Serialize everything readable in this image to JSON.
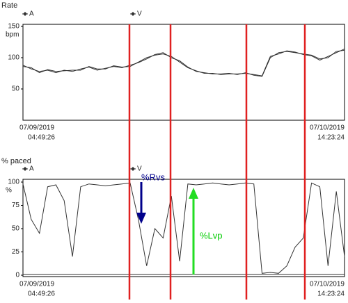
{
  "chart_data": [
    {
      "type": "line",
      "title": "Rate",
      "y_unit": "bpm",
      "ylim": [
        0,
        150
      ],
      "yticks": [
        50,
        100,
        150
      ],
      "xlabels": [
        {
          "date": "07/09/2019",
          "time": "04:49:26"
        },
        {
          "date": "07/10/2019",
          "time": "14:23:24"
        }
      ],
      "series": [
        {
          "name": "A",
          "color": "#333333",
          "values": [
            88,
            82,
            78,
            80,
            76,
            80,
            78,
            82,
            85,
            80,
            83,
            86,
            84,
            88,
            92,
            98,
            105,
            108,
            100,
            95,
            85,
            78,
            76,
            74,
            74,
            75,
            73,
            76,
            72,
            70,
            100,
            108,
            110,
            108,
            106,
            104,
            98,
            100,
            110,
            112
          ]
        },
        {
          "name": "V",
          "color": "#333333",
          "values": [
            86,
            84,
            76,
            81,
            78,
            79,
            80,
            80,
            86,
            82,
            82,
            87,
            85,
            86,
            93,
            100,
            104,
            106,
            102,
            93,
            84,
            79,
            75,
            75,
            73,
            74,
            74,
            75,
            73,
            71,
            102,
            106,
            111,
            109,
            105,
            103,
            96,
            102,
            108,
            114
          ]
        }
      ]
    },
    {
      "type": "line",
      "title": "% paced",
      "y_unit": "%",
      "ylim": [
        0,
        100
      ],
      "yticks": [
        0,
        25,
        50,
        75,
        100
      ],
      "xlabels": [
        {
          "date": "07/09/2019",
          "time": "04:49:26"
        },
        {
          "date": "07/10/2019",
          "time": "14:23:24"
        }
      ],
      "annotations": [
        {
          "text": "%Rvs",
          "color": "#00008b"
        },
        {
          "text": "%Lvp",
          "color": "#00cc00"
        }
      ],
      "series": [
        {
          "name": "A",
          "color": "#333333",
          "values": [
            1,
            1,
            1,
            1,
            1,
            1,
            1,
            1,
            1,
            1,
            1,
            1,
            1,
            1,
            1,
            1,
            1,
            1,
            1,
            1,
            1,
            1,
            1,
            1,
            1,
            1,
            1,
            1,
            1,
            1,
            1,
            1,
            1,
            1,
            1,
            1,
            1,
            1,
            1,
            1
          ]
        },
        {
          "name": "V",
          "color": "#333333",
          "values": [
            98,
            60,
            45,
            95,
            97,
            80,
            20,
            95,
            98,
            97,
            96,
            97,
            98,
            99,
            60,
            10,
            50,
            40,
            85,
            15,
            98,
            97,
            98,
            99,
            98,
            97,
            98,
            99,
            98,
            2,
            3,
            2,
            10,
            30,
            40,
            99,
            95,
            10,
            90,
            20
          ]
        }
      ]
    }
  ]
}
